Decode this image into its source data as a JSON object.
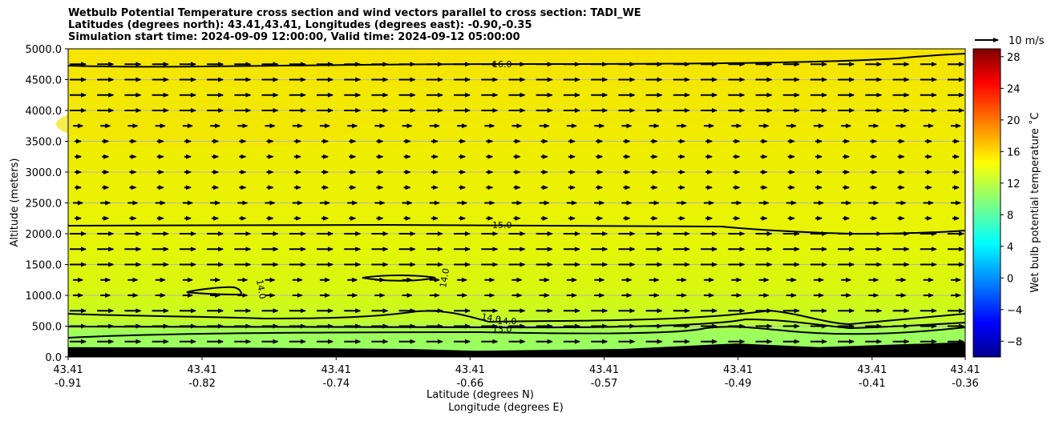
{
  "title_lines": [
    "Wetbulb Potential Temperature cross section and wind vectors parallel to cross section: TADI_WE",
    "Latitudes (degrees north): 43.41,43.41, Longitudes (degrees east): -0.90,-0.35",
    "Simulation start time: 2024-09-09 12:00:00, Valid time: 2024-09-12 05:00:00"
  ],
  "chart_data": {
    "type": "contourf_cross_section",
    "ylabel": "Altitude (meters)",
    "xlabel_lat": "Latitude (degrees N)",
    "xlabel_lon": "Longitude (degrees E)",
    "ylim": [
      0,
      5000
    ],
    "y_ticks": [
      "0.0",
      "500.0",
      "1000.0",
      "1500.0",
      "2000.0",
      "2500.0",
      "3000.0",
      "3500.0",
      "4000.0",
      "4500.0",
      "5000.0"
    ],
    "x_ticks": [
      {
        "lat": "43.41",
        "lon": "-0.91"
      },
      {
        "lat": "43.41",
        "lon": "-0.82"
      },
      {
        "lat": "43.41",
        "lon": "-0.74"
      },
      {
        "lat": "43.41",
        "lon": "-0.66"
      },
      {
        "lat": "43.41",
        "lon": "-0.57"
      },
      {
        "lat": "43.41",
        "lon": "-0.49"
      },
      {
        "lat": "43.41",
        "lon": "-0.41"
      },
      {
        "lat": "43.41",
        "lon": "-0.36"
      }
    ],
    "xlim_lon": [
      -0.91,
      -0.36
    ],
    "gridlines": "horizontal",
    "colorbar": {
      "label": "Wet bulb potential temperature ˚C",
      "range": [
        -10,
        29
      ],
      "ticks": [
        "−8",
        "−4",
        "0",
        "4",
        "8",
        "12",
        "16",
        "20",
        "24",
        "28"
      ],
      "colormap": "jet"
    },
    "contour_labels": [
      "16.0",
      "15.0",
      "14.0",
      "14.0",
      "14.0",
      "14.0",
      "13.0"
    ],
    "vector_key": "10 m/s",
    "terrain_heights_m": [
      {
        "lon": -0.91,
        "h": 160
      },
      {
        "lon": -0.8,
        "h": 150
      },
      {
        "lon": -0.7,
        "h": 130
      },
      {
        "lon": -0.66,
        "h": 100
      },
      {
        "lon": -0.57,
        "h": 130
      },
      {
        "lon": -0.5,
        "h": 220
      },
      {
        "lon": -0.45,
        "h": 160
      },
      {
        "lon": -0.36,
        "h": 240
      }
    ],
    "wind_vector_levels_m": [
      250,
      500,
      750,
      1000,
      1250,
      1500,
      1750,
      2000,
      2250,
      2500,
      2750,
      3000,
      3250,
      3500,
      3750,
      4000,
      4250,
      4500,
      4750
    ],
    "wind_vector_lengths_rel": [
      1.0,
      1.0,
      1.0,
      0.6,
      0.6,
      1.0,
      1.0,
      1.0,
      0.4,
      0.6,
      0.4,
      0.4,
      0.4,
      0.4,
      0.6,
      1.0,
      1.0,
      1.0,
      1.0
    ]
  }
}
